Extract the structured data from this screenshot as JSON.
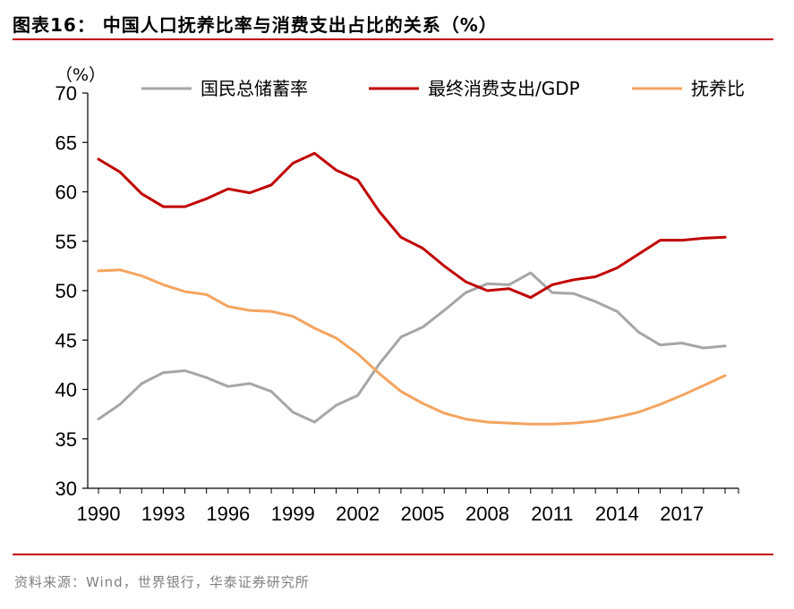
{
  "figure": {
    "title": "图表16：  中国人口抚养比率与消费支出占比的关系（%）",
    "source": "资料来源：Wind，世界银行，华泰证券研究所"
  },
  "chart_data": {
    "type": "line",
    "title": "图表16：  中国人口抚养比率与消费支出占比的关系（%）",
    "ylabel": "（%）",
    "xlabel": "",
    "ylim": [
      30,
      70
    ],
    "yticks": [
      30,
      35,
      40,
      45,
      50,
      55,
      60,
      65,
      70
    ],
    "xlim": [
      1990,
      2019
    ],
    "xticks": [
      1990,
      1993,
      1996,
      1999,
      2002,
      2005,
      2008,
      2011,
      2014,
      2017
    ],
    "grid": false,
    "legend_position": "top",
    "x": [
      1990,
      1991,
      1992,
      1993,
      1994,
      1995,
      1996,
      1997,
      1998,
      1999,
      2000,
      2001,
      2002,
      2003,
      2004,
      2005,
      2006,
      2007,
      2008,
      2009,
      2010,
      2011,
      2012,
      2013,
      2014,
      2015,
      2016,
      2017,
      2018,
      2019
    ],
    "series": [
      {
        "name": "国民总储蓄率",
        "color": "#a6a6a6",
        "values": [
          37.0,
          38.5,
          40.6,
          41.7,
          41.9,
          41.2,
          40.3,
          40.6,
          39.8,
          37.7,
          36.7,
          38.4,
          39.4,
          42.6,
          45.3,
          46.3,
          48.0,
          49.8,
          50.7,
          50.6,
          51.8,
          49.8,
          49.7,
          48.9,
          47.9,
          45.8,
          44.5,
          44.7,
          44.2,
          44.4
        ]
      },
      {
        "name": "最终消费支出/GDP",
        "color": "#c00000",
        "values": [
          63.3,
          62.0,
          59.8,
          58.5,
          58.5,
          59.3,
          60.3,
          59.9,
          60.7,
          62.9,
          63.9,
          62.2,
          61.2,
          58.0,
          55.4,
          54.3,
          52.5,
          50.9,
          50.0,
          50.2,
          49.3,
          50.6,
          51.1,
          51.4,
          52.3,
          53.7,
          55.1,
          55.1,
          55.3,
          55.4
        ]
      },
      {
        "name": "抚养比",
        "color": "#f4a460",
        "values": [
          52.0,
          52.1,
          51.5,
          50.6,
          49.9,
          49.6,
          48.4,
          48.0,
          47.9,
          47.4,
          46.2,
          45.2,
          43.6,
          41.6,
          39.8,
          38.6,
          37.6,
          37.0,
          36.7,
          36.6,
          36.5,
          36.5,
          36.6,
          36.8,
          37.2,
          37.7,
          38.5,
          39.4,
          40.4,
          41.4
        ]
      }
    ]
  }
}
